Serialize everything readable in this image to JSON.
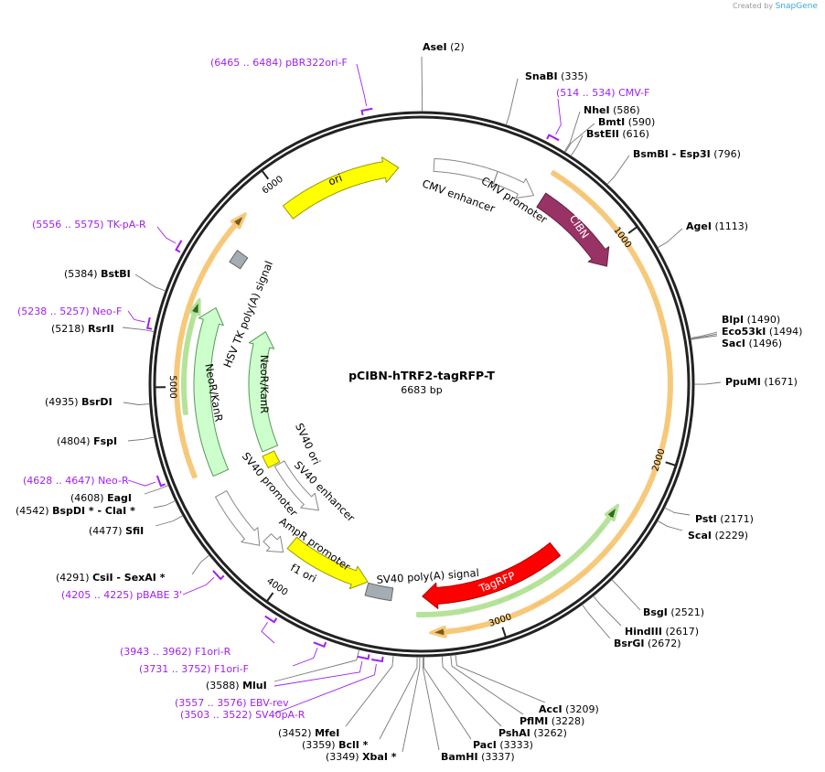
{
  "credit": {
    "prefix": "Created by",
    "brand": "SnapGene"
  },
  "plasmid": {
    "name": "pCIBN-hTRF2-tagRFP-T",
    "size_label": "6683 bp",
    "length": 6683
  },
  "ticks": [
    "1000",
    "2000",
    "3000",
    "4000",
    "5000",
    "6000"
  ],
  "features": [
    {
      "name": "ori",
      "start": 5980,
      "end": 6570,
      "dir": 1,
      "fill": "#ffff00",
      "stroke": "#999900"
    },
    {
      "name": "CMV enhancer",
      "start": 60,
      "end": 365,
      "dir": 0,
      "fill": "#ffffff",
      "stroke": "#888888"
    },
    {
      "name": "CMV promoter",
      "start": 366,
      "end": 570,
      "dir": 1,
      "fill": "#ffffff",
      "stroke": "#888888"
    },
    {
      "name": "CIBN",
      "start": 613,
      "end": 1068,
      "dir": 1,
      "fill": "#993366",
      "stroke": "#662244"
    },
    {
      "name": "TagRFP",
      "start": 2618,
      "end": 3338,
      "dir": 1,
      "fill": "#ff0000",
      "stroke": "#aa0000"
    },
    {
      "name": "SV40 poly(A) signal",
      "start": 3490,
      "end": 3620,
      "dir": 0,
      "fill": "#a6acb3",
      "stroke": "#666666"
    },
    {
      "name": "f1 ori",
      "start": 3625,
      "end": 4070,
      "dir": -1,
      "fill": "#ffff00",
      "stroke": "#999900"
    },
    {
      "name": "AmpR promoter",
      "start": 4075,
      "end": 4180,
      "dir": -1,
      "fill": "#ffffff",
      "stroke": "#888888"
    },
    {
      "name": "SV40 promoter",
      "start": 4180,
      "end": 4480,
      "dir": -1,
      "fill": "#ffffff",
      "stroke": "#888888"
    },
    {
      "name": "SV40 ori",
      "start": 4480,
      "end": 4560,
      "dir": 0,
      "fill": "#ffff00",
      "stroke": "#999900"
    },
    {
      "name": "SV40 enhancer",
      "start": 4070,
      "end": 4470,
      "dir": -1,
      "fill": "#ffffff",
      "stroke": "#888888"
    },
    {
      "name": "NeoR/KanR",
      "start": 4570,
      "end": 5390,
      "dir": 1,
      "fill": "#ccffcc",
      "stroke": "#559955"
    },
    {
      "name": "NeoR/KanR",
      "start": 4585,
      "end": 5357,
      "dir": 1,
      "fill": "#ccffcc",
      "stroke": "#559955"
    },
    {
      "name": "HSV TK poly(A) signal",
      "start": 5615,
      "end": 5680,
      "dir": 0,
      "fill": "#a6acb3",
      "stroke": "#666666"
    },
    {
      "name": "",
      "start": 590,
      "end": 3304,
      "dir": 1,
      "fill": "#7a5a20",
      "stroke": "#f7c97a"
    },
    {
      "name": "",
      "start": 4600,
      "end": 5830,
      "dir": 1,
      "fill": "#7a5a20",
      "stroke": "#f7c97a"
    },
    {
      "name": "",
      "start": 2258,
      "end": 3360,
      "dir": -1,
      "fill": "#336622",
      "stroke": "#b6e39a"
    },
    {
      "name": "",
      "start": 4880,
      "end": 5400,
      "dir": 1,
      "fill": "#336622",
      "stroke": "#b6e39a"
    }
  ],
  "sites": [
    {
      "name": "AseI",
      "pos": "2"
    },
    {
      "name": "SnaBI",
      "pos": "335"
    },
    {
      "name": "NheI",
      "pos": "586"
    },
    {
      "name": "BmtI",
      "pos": "590"
    },
    {
      "name": "BstEII",
      "pos": "616"
    },
    {
      "name": "BsmBI  - Esp3I",
      "pos": "796"
    },
    {
      "name": "AgeI",
      "pos": "1113"
    },
    {
      "name": "BlpI",
      "pos": "1490"
    },
    {
      "name": "Eco53kI",
      "pos": "1494"
    },
    {
      "name": "SacI",
      "pos": "1496"
    },
    {
      "name": "PpuMI",
      "pos": "1671"
    },
    {
      "name": "PstI",
      "pos": "2171"
    },
    {
      "name": "ScaI",
      "pos": "2229"
    },
    {
      "name": "BsgI",
      "pos": "2521"
    },
    {
      "name": "HindIII",
      "pos": "2617"
    },
    {
      "name": "BsrGI",
      "pos": "2672"
    },
    {
      "name": "AccI",
      "pos": "3209"
    },
    {
      "name": "PflMI",
      "pos": "3228"
    },
    {
      "name": "PshAI",
      "pos": "3262"
    },
    {
      "name": "PacI",
      "pos": "3333"
    },
    {
      "name": "BamHI",
      "pos": "3337"
    },
    {
      "name": "XbaI *",
      "pos": "3349"
    },
    {
      "name": "BclI *",
      "pos": "3359"
    },
    {
      "name": "MfeI",
      "pos": "3452"
    },
    {
      "name": "MluI",
      "pos": "3588"
    },
    {
      "name": "CsiI   - SexAI *",
      "pos": "4291"
    },
    {
      "name": "SfiI",
      "pos": "4477"
    },
    {
      "name": "BspDI *  - ClaI *",
      "pos": "4542"
    },
    {
      "name": "EagI",
      "pos": "4608"
    },
    {
      "name": "FspI",
      "pos": "4804"
    },
    {
      "name": "BsrDI",
      "pos": "4935"
    },
    {
      "name": "RsrII",
      "pos": "5218"
    },
    {
      "name": "BstBI",
      "pos": "5384"
    }
  ],
  "primers": [
    {
      "name": "pBR322ori-F",
      "range": "(6465 .. 6484)",
      "start": 6465,
      "end": 6484
    },
    {
      "name": "CMV-F",
      "range": "(514 .. 534)",
      "start": 514,
      "end": 534
    },
    {
      "name": "SV40pA-R",
      "range": "(3503 .. 3522)",
      "start": 3503,
      "end": 3522
    },
    {
      "name": "EBV-rev",
      "range": "(3557 .. 3576)",
      "start": 3557,
      "end": 3576
    },
    {
      "name": "F1ori-F",
      "range": "(3731 .. 3752)",
      "start": 3731,
      "end": 3752
    },
    {
      "name": "F1ori-R",
      "range": "(3943 .. 3962)",
      "start": 3943,
      "end": 3962
    },
    {
      "name": "pBABE 3'",
      "range": "(4205 .. 4225)",
      "start": 4205,
      "end": 4225
    },
    {
      "name": "Neo-R",
      "range": "(4628 .. 4647)",
      "start": 4628,
      "end": 4647
    },
    {
      "name": "Neo-F",
      "range": "(5238 .. 5257)",
      "start": 5238,
      "end": 5257
    },
    {
      "name": "TK-pA-R",
      "range": "(5556 .. 5575)",
      "start": 5556,
      "end": 5575
    }
  ]
}
